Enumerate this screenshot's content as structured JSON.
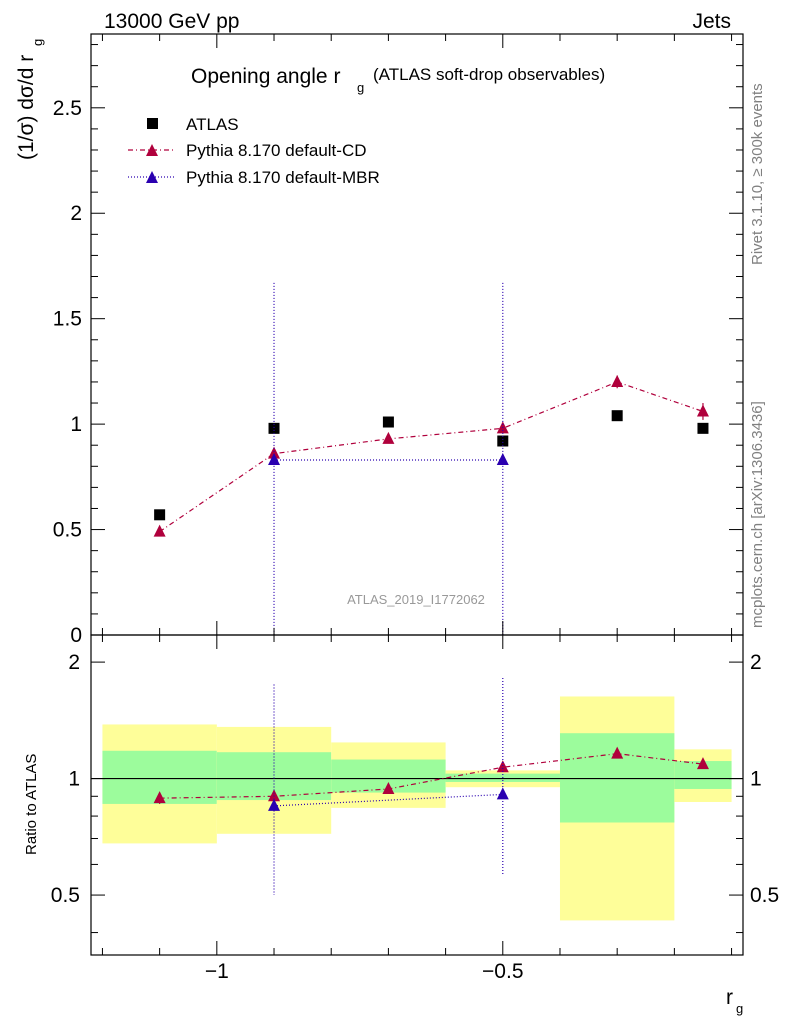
{
  "header": {
    "energy": "13000 GeV pp",
    "process": "Jets",
    "title_main": "Opening angle r",
    "title_sub": "g",
    "title_paren": "(ATLAS soft-drop observables)",
    "side_top": "Rivet 3.1.10, ≥ 300k events",
    "side_bottom": "mcplots.cern.ch [arXiv:1306.3436]",
    "watermark": "ATLAS_2019_I1772062",
    "ylabel_main": "(1/σ) dσ/d r",
    "ylabel_main_sub": "g",
    "ylabel_ratio": "Ratio to ATLAS",
    "xlabel": "r",
    "xlabel_sub": "g"
  },
  "legend": [
    {
      "label": "ATLAS",
      "marker": "square",
      "color": "#000000"
    },
    {
      "label": "Pythia 8.170 default-CD",
      "marker": "triangle",
      "color": "#b0003c"
    },
    {
      "label": "Pythia 8.170 default-MBR",
      "marker": "triangle",
      "color": "#2a00b0"
    }
  ],
  "chart_data": [
    {
      "type": "scatter",
      "panel": "main",
      "xlim": [
        -1.22,
        -0.08
      ],
      "ylim": [
        0,
        2.85
      ],
      "x_ticks": [
        -1,
        -0.5
      ],
      "x_tick_labels": [
        "−1",
        "−0.5"
      ],
      "y_ticks": [
        0,
        0.5,
        1,
        1.5,
        2,
        2.5
      ],
      "y_tick_labels": [
        "0",
        "0.5",
        "1",
        "1.5",
        "2",
        "2.5"
      ],
      "bin_edges": [
        -1.2,
        -1.0,
        -0.8,
        -0.6,
        -0.4,
        -0.2,
        -0.1
      ],
      "series": [
        {
          "name": "ATLAS",
          "color": "#000000",
          "marker": "square",
          "x": [
            -1.1,
            -0.9,
            -0.7,
            -0.5,
            -0.3,
            -0.15
          ],
          "y": [
            0.57,
            0.98,
            1.01,
            0.92,
            1.04,
            0.98
          ]
        },
        {
          "name": "Pythia 8.170 default-CD",
          "color": "#b0003c",
          "marker": "triangle",
          "line": "dashdot",
          "x": [
            -1.1,
            -0.9,
            -0.7,
            -0.5,
            -0.3,
            -0.15
          ],
          "y": [
            0.49,
            0.86,
            0.93,
            0.98,
            1.2,
            1.06
          ],
          "yerr": [
            0.02,
            0.02,
            0.02,
            0.02,
            0.03,
            0.04
          ]
        },
        {
          "name": "Pythia 8.170 default-MBR",
          "color": "#2a00b0",
          "marker": "triangle",
          "line": "dotted",
          "x": [
            -0.9,
            -0.5
          ],
          "y": [
            0.83,
            0.83
          ],
          "yerr_up": [
            0.84,
            0.84
          ],
          "yerr_down": [
            0.83,
            0.83
          ]
        }
      ]
    },
    {
      "type": "scatter",
      "panel": "ratio",
      "xlim": [
        -1.22,
        -0.08
      ],
      "ylim": [
        0.35,
        2.35
      ],
      "y_ticks": [
        0.5,
        1,
        2
      ],
      "y_tick_labels": [
        "0.5",
        "1",
        "2"
      ],
      "reference": 1,
      "bands": [
        {
          "x0": -1.2,
          "x1": -1.0,
          "inner": [
            0.86,
            1.18
          ],
          "outer": [
            0.68,
            1.38
          ]
        },
        {
          "x0": -1.0,
          "x1": -0.8,
          "inner": [
            0.88,
            1.17
          ],
          "outer": [
            0.72,
            1.36
          ]
        },
        {
          "x0": -0.8,
          "x1": -0.6,
          "inner": [
            0.92,
            1.12
          ],
          "outer": [
            0.84,
            1.24
          ]
        },
        {
          "x0": -0.6,
          "x1": -0.4,
          "inner": [
            0.98,
            1.03
          ],
          "outer": [
            0.95,
            1.05
          ]
        },
        {
          "x0": -0.4,
          "x1": -0.2,
          "inner": [
            0.77,
            1.31
          ],
          "outer": [
            0.43,
            1.63
          ]
        },
        {
          "x0": -0.2,
          "x1": -0.1,
          "inner": [
            0.94,
            1.11
          ],
          "outer": [
            0.87,
            1.19
          ]
        }
      ],
      "band_colors": {
        "inner": "#9cfc9c",
        "outer": "#fefe99"
      },
      "series": [
        {
          "name": "Pythia 8.170 default-CD",
          "color": "#b0003c",
          "marker": "triangle",
          "line": "dashdot",
          "x": [
            -1.1,
            -0.9,
            -0.7,
            -0.5,
            -0.3,
            -0.15
          ],
          "y": [
            0.89,
            0.9,
            0.94,
            1.07,
            1.16,
            1.09
          ],
          "yerr": [
            0.03,
            0.02,
            0.02,
            0.02,
            0.02,
            0.03
          ]
        },
        {
          "name": "Pythia 8.170 default-MBR",
          "color": "#2a00b0",
          "marker": "triangle",
          "line": "dotted",
          "x": [
            -0.9,
            -0.5
          ],
          "y": [
            0.85,
            0.91
          ],
          "yerr_up": [
            1.75,
            1.82
          ],
          "yerr_down": [
            0.5,
            0.56
          ]
        }
      ]
    }
  ]
}
